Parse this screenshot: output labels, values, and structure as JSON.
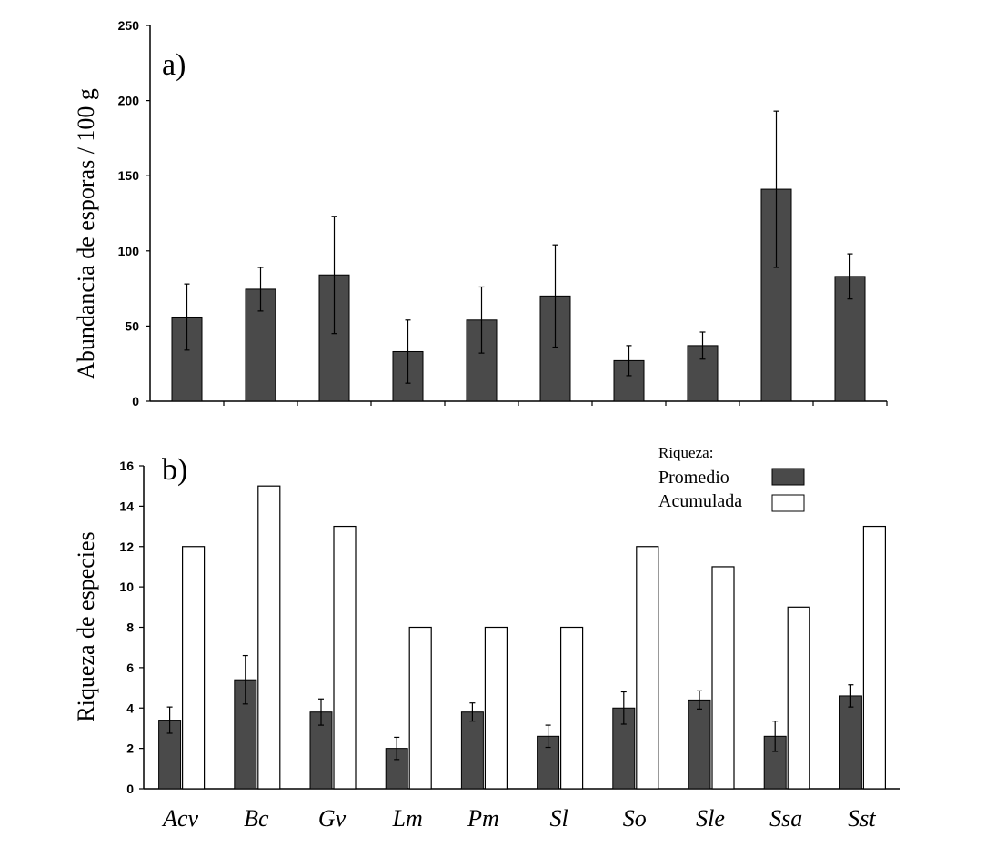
{
  "chart_data": [
    {
      "type": "bar",
      "panel_label": "a)",
      "title": "",
      "xlabel": "",
      "ylabel": "Abundancia  de esporas / 100 g",
      "ylim": [
        0,
        250
      ],
      "yticks": [
        0,
        50,
        100,
        150,
        200,
        250
      ],
      "categories": [
        "Acv",
        "Bc",
        "Gv",
        "Lm",
        "Pm",
        "Sl",
        "So",
        "Sle",
        "Ssa",
        "Sst"
      ],
      "series": [
        {
          "name": "Abundancia",
          "color": "#4a4a4a",
          "values": [
            56,
            74.5,
            84,
            33,
            54,
            70,
            27,
            37,
            141,
            83
          ],
          "error": [
            22,
            14.5,
            39,
            21,
            22,
            34,
            10,
            9,
            52,
            15
          ]
        }
      ]
    },
    {
      "type": "bar",
      "panel_label": "b)",
      "title": "",
      "xlabel": "",
      "ylabel": "Riqueza de especies",
      "ylim": [
        0,
        16
      ],
      "yticks": [
        0,
        2,
        4,
        6,
        8,
        10,
        12,
        14,
        16
      ],
      "categories": [
        "Acv",
        "Bc",
        "Gv",
        "Lm",
        "Pm",
        "Sl",
        "So",
        "Sle",
        "Ssa",
        "Sst"
      ],
      "legend_title": "Riqueza:",
      "legend_position": "top-right",
      "series": [
        {
          "name": "Promedio",
          "color": "#4a4a4a",
          "values": [
            3.4,
            5.4,
            3.8,
            2.0,
            3.8,
            2.6,
            4.0,
            4.4,
            2.6,
            4.6
          ],
          "error": [
            0.65,
            1.2,
            0.65,
            0.55,
            0.45,
            0.55,
            0.8,
            0.45,
            0.75,
            0.55
          ]
        },
        {
          "name": "Acumulada",
          "color": "#ffffff",
          "values": [
            12,
            15,
            13,
            8,
            8,
            8,
            12,
            11,
            9,
            13
          ]
        }
      ]
    }
  ]
}
